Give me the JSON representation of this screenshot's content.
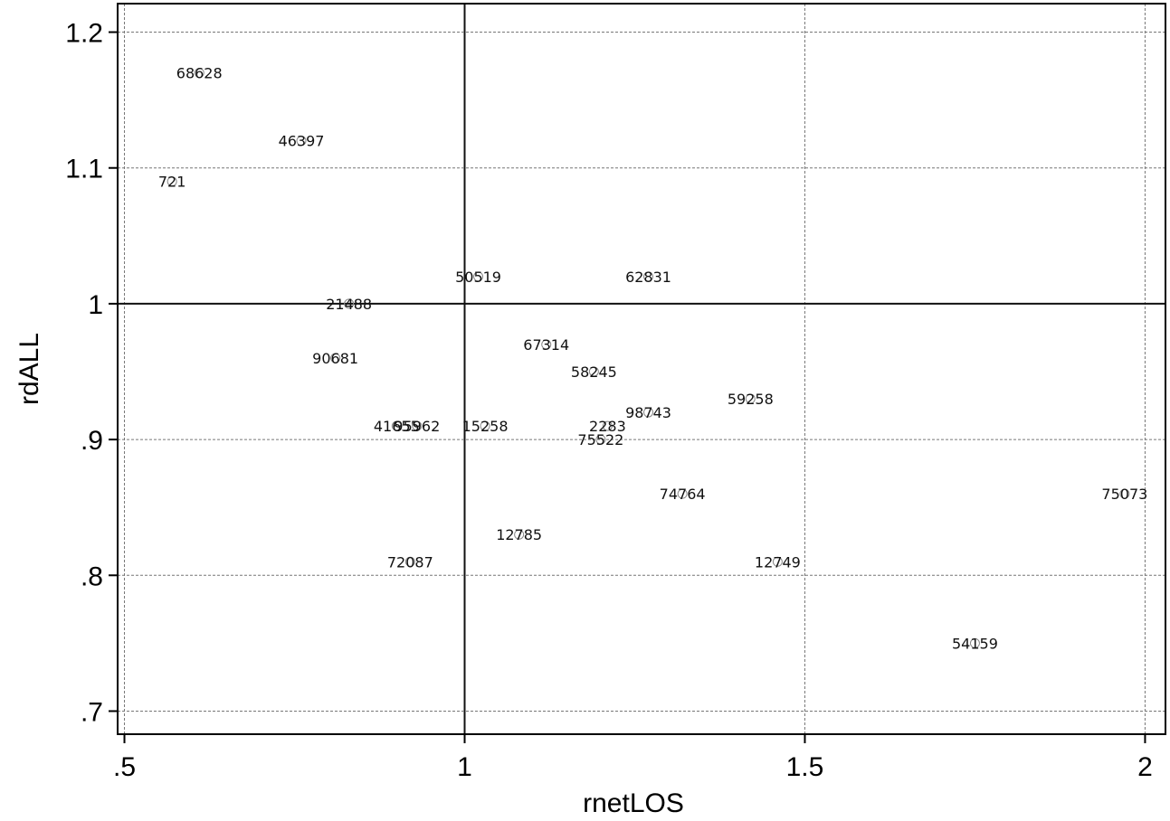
{
  "chart_data": {
    "type": "scatter",
    "xlabel": "rnetLOS",
    "ylabel": "rdALL",
    "xlim": [
      0.49,
      2.03
    ],
    "ylim": [
      0.683,
      1.221
    ],
    "x_ticks": [
      {
        "value": 0.5,
        "label": ".5"
      },
      {
        "value": 1,
        "label": "1"
      },
      {
        "value": 1.5,
        "label": "1.5"
      },
      {
        "value": 2,
        "label": "2"
      }
    ],
    "y_ticks": [
      {
        "value": 0.7,
        "label": ".7"
      },
      {
        "value": 0.8,
        "label": ".8"
      },
      {
        "value": 0.9,
        "label": ".9"
      },
      {
        "value": 1.0,
        "label": "1"
      },
      {
        "value": 1.1,
        "label": "1.1"
      },
      {
        "value": 1.2,
        "label": "1.2"
      }
    ],
    "grid": true,
    "points": [
      {
        "label": "68628",
        "x": 0.61,
        "y": 1.17
      },
      {
        "label": "46397",
        "x": 0.76,
        "y": 1.12
      },
      {
        "label": "721",
        "x": 0.57,
        "y": 1.09
      },
      {
        "label": "50519",
        "x": 1.02,
        "y": 1.02
      },
      {
        "label": "62831",
        "x": 1.27,
        "y": 1.02
      },
      {
        "label": "21488",
        "x": 0.83,
        "y": 1.0
      },
      {
        "label": "67314",
        "x": 1.12,
        "y": 0.97
      },
      {
        "label": "90681",
        "x": 0.81,
        "y": 0.96
      },
      {
        "label": "58245",
        "x": 1.19,
        "y": 0.95
      },
      {
        "label": "59258",
        "x": 1.42,
        "y": 0.93
      },
      {
        "label": "98743",
        "x": 1.27,
        "y": 0.92
      },
      {
        "label": "41655",
        "x": 0.9,
        "y": 0.91
      },
      {
        "label": "95962",
        "x": 0.93,
        "y": 0.91
      },
      {
        "label": "15258",
        "x": 1.03,
        "y": 0.91
      },
      {
        "label": "2283",
        "x": 1.21,
        "y": 0.91
      },
      {
        "label": "75522",
        "x": 1.2,
        "y": 0.9
      },
      {
        "label": "74764",
        "x": 1.32,
        "y": 0.86
      },
      {
        "label": "75073",
        "x": 1.97,
        "y": 0.86
      },
      {
        "label": "12785",
        "x": 1.08,
        "y": 0.83
      },
      {
        "label": "72087",
        "x": 0.92,
        "y": 0.81
      },
      {
        "label": "12749",
        "x": 1.46,
        "y": 0.81
      },
      {
        "label": "54159",
        "x": 1.75,
        "y": 0.75
      }
    ]
  }
}
